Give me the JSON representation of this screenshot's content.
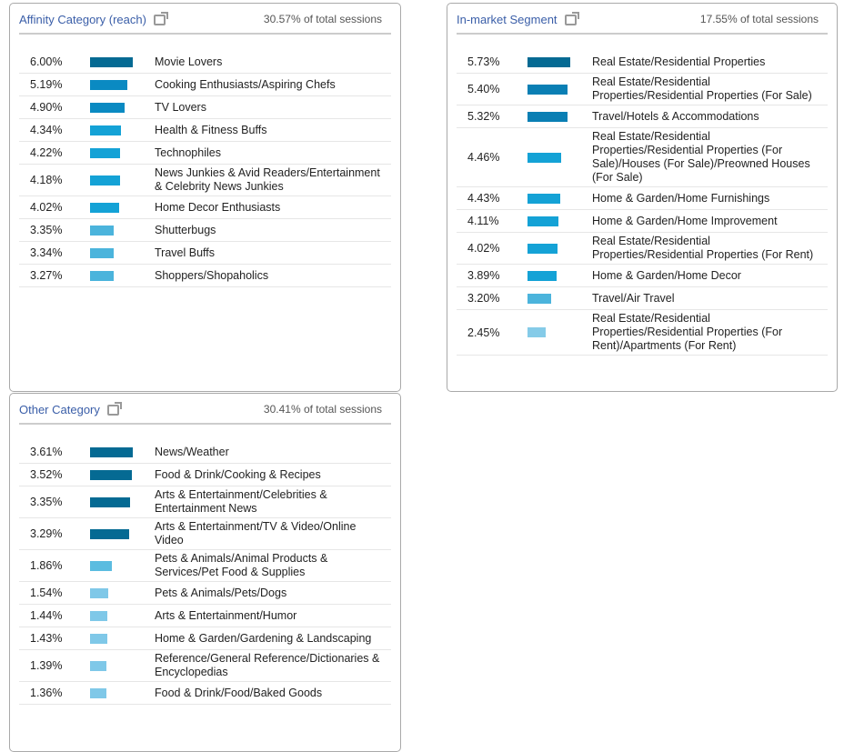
{
  "panels": [
    {
      "title": "Affinity Category (reach)",
      "total": "30.57% of total sessions",
      "rows": [
        {
          "pct": "6.00%",
          "value": 6.0,
          "label": "Movie Lovers",
          "color": "#056a93"
        },
        {
          "pct": "5.19%",
          "value": 5.19,
          "label": "Cooking Enthusiasts/Aspiring Chefs",
          "color": "#0a8ac2"
        },
        {
          "pct": "4.90%",
          "value": 4.9,
          "label": "TV Lovers",
          "color": "#0a8ac2"
        },
        {
          "pct": "4.34%",
          "value": 4.34,
          "label": "Health & Fitness Buffs",
          "color": "#14a2d6"
        },
        {
          "pct": "4.22%",
          "value": 4.22,
          "label": "Technophiles",
          "color": "#14a2d6"
        },
        {
          "pct": "4.18%",
          "value": 4.18,
          "label": "News Junkies & Avid Readers/Entertainment & Celebrity News Junkies",
          "color": "#14a2d6"
        },
        {
          "pct": "4.02%",
          "value": 4.02,
          "label": "Home Decor Enthusiasts",
          "color": "#14a2d6"
        },
        {
          "pct": "3.35%",
          "value": 3.35,
          "label": "Shutterbugs",
          "color": "#4bb4dc"
        },
        {
          "pct": "3.34%",
          "value": 3.34,
          "label": "Travel Buffs",
          "color": "#4bb4dc"
        },
        {
          "pct": "3.27%",
          "value": 3.27,
          "label": "Shoppers/Shopaholics",
          "color": "#4bb4dc"
        }
      ]
    },
    {
      "title": "Other Category",
      "total": "30.41% of total sessions",
      "rows": [
        {
          "pct": "3.61%",
          "value": 3.61,
          "label": "News/Weather",
          "color": "#056a93"
        },
        {
          "pct": "3.52%",
          "value": 3.52,
          "label": "Food & Drink/Cooking & Recipes",
          "color": "#056a93"
        },
        {
          "pct": "3.35%",
          "value": 3.35,
          "label": "Arts & Entertainment/Celebrities & Entertainment News",
          "color": "#056a93"
        },
        {
          "pct": "3.29%",
          "value": 3.29,
          "label": "Arts & Entertainment/TV & Video/Online Video",
          "color": "#056a93"
        },
        {
          "pct": "1.86%",
          "value": 1.86,
          "label": "Pets & Animals/Animal Products & Services/Pet Food & Supplies",
          "color": "#5bbce0"
        },
        {
          "pct": "1.54%",
          "value": 1.54,
          "label": "Pets & Animals/Pets/Dogs",
          "color": "#7fc8e8"
        },
        {
          "pct": "1.44%",
          "value": 1.44,
          "label": "Arts & Entertainment/Humor",
          "color": "#7fc8e8"
        },
        {
          "pct": "1.43%",
          "value": 1.43,
          "label": "Home & Garden/Gardening & Landscaping",
          "color": "#7fc8e8"
        },
        {
          "pct": "1.39%",
          "value": 1.39,
          "label": "Reference/General Reference/Dictionaries & Encyclopedias",
          "color": "#7fc8e8"
        },
        {
          "pct": "1.36%",
          "value": 1.36,
          "label": "Food & Drink/Food/Baked Goods",
          "color": "#7fc8e8"
        }
      ]
    },
    {
      "title": "In-market Segment",
      "total": "17.55% of total sessions",
      "rows": [
        {
          "pct": "5.73%",
          "value": 5.73,
          "label": "Real Estate/Residential Properties",
          "color": "#056a93"
        },
        {
          "pct": "5.40%",
          "value": 5.4,
          "label": "Real Estate/Residential Properties/Residential Properties (For Sale)",
          "color": "#0a7fb4"
        },
        {
          "pct": "5.32%",
          "value": 5.32,
          "label": "Travel/Hotels & Accommodations",
          "color": "#0a7fb4"
        },
        {
          "pct": "4.46%",
          "value": 4.46,
          "label": "Real Estate/Residential Properties/Residential Properties (For Sale)/Houses (For Sale)/Preowned Houses (For Sale)",
          "color": "#14a2d6"
        },
        {
          "pct": "4.43%",
          "value": 4.43,
          "label": "Home & Garden/Home Furnishings",
          "color": "#14a2d6"
        },
        {
          "pct": "4.11%",
          "value": 4.11,
          "label": "Home & Garden/Home Improvement",
          "color": "#14a2d6"
        },
        {
          "pct": "4.02%",
          "value": 4.02,
          "label": "Real Estate/Residential Properties/Residential Properties (For Rent)",
          "color": "#14a2d6"
        },
        {
          "pct": "3.89%",
          "value": 3.89,
          "label": "Home & Garden/Home Decor",
          "color": "#14a2d6"
        },
        {
          "pct": "3.20%",
          "value": 3.2,
          "label": "Travel/Air Travel",
          "color": "#4bb4dc"
        },
        {
          "pct": "2.45%",
          "value": 2.45,
          "label": "Real Estate/Residential Properties/Residential Properties (For Rent)/Apartments (For Rent)",
          "color": "#85cbe8"
        }
      ]
    }
  ]
}
